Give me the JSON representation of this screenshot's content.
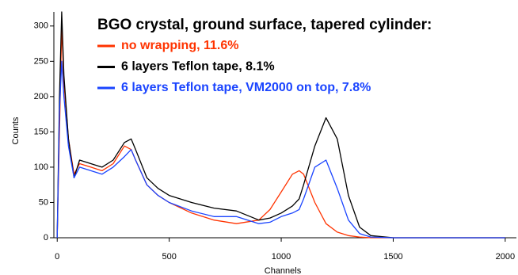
{
  "chart_data": {
    "type": "line",
    "title": "BGO crystal, ground surface, tapered cylinder:",
    "x_label": "Channels",
    "y_label": "Counts",
    "x": [
      0,
      10,
      20,
      30,
      50,
      75,
      100,
      150,
      200,
      250,
      300,
      330,
      350,
      400,
      450,
      500,
      600,
      700,
      800,
      900,
      950,
      1000,
      1050,
      1080,
      1100,
      1150,
      1200,
      1250,
      1300,
      1350,
      1400,
      1500,
      2000
    ],
    "series": [
      {
        "name": "no wrapping, 11.6%",
        "color": "#ff3300",
        "values": [
          0,
          150,
          300,
          220,
          140,
          90,
          105,
          100,
          95,
          105,
          130,
          125,
          110,
          75,
          60,
          50,
          35,
          25,
          20,
          25,
          40,
          65,
          90,
          95,
          90,
          50,
          20,
          8,
          3,
          1,
          0,
          0,
          0
        ]
      },
      {
        "name": "6 layers Teflon tape, 8.1%",
        "color": "#000000",
        "values": [
          0,
          200,
          320,
          230,
          140,
          85,
          110,
          105,
          100,
          110,
          135,
          140,
          125,
          85,
          70,
          60,
          50,
          42,
          38,
          25,
          28,
          35,
          45,
          55,
          75,
          130,
          170,
          140,
          60,
          15,
          3,
          0,
          0
        ]
      },
      {
        "name": "6 layers Teflon tape, VM2000 on top, 7.8%",
        "color": "#1a44ff",
        "values": [
          0,
          180,
          250,
          200,
          130,
          85,
          100,
          95,
          90,
          100,
          115,
          125,
          110,
          75,
          60,
          50,
          38,
          30,
          30,
          20,
          22,
          30,
          35,
          40,
          55,
          100,
          110,
          70,
          25,
          6,
          1,
          0,
          0
        ]
      }
    ],
    "xlim": [
      -15,
      2050
    ],
    "ylim": [
      0,
      320
    ],
    "xticks": [
      0,
      500,
      1000,
      1500,
      2000
    ],
    "yticks": [
      0,
      50,
      100,
      150,
      200,
      250,
      300
    ]
  }
}
